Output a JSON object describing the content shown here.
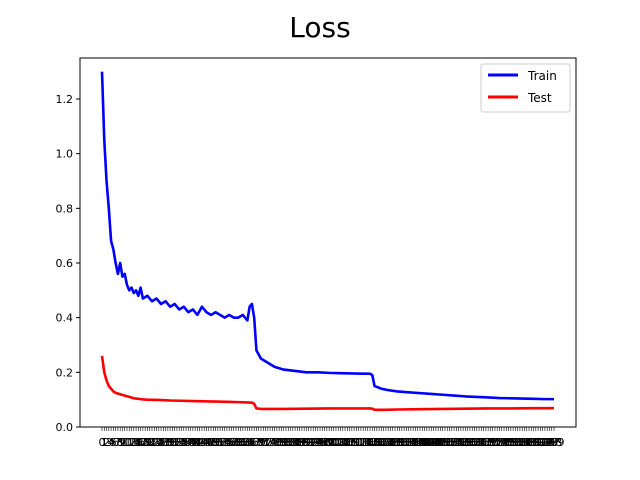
{
  "chart_data": {
    "type": "line",
    "title": "Loss",
    "xlabel": "",
    "ylabel": "",
    "xlim": [
      0,
      200
    ],
    "ylim": [
      0,
      1.35
    ],
    "yticks": [
      0.0,
      0.2,
      0.4,
      0.6,
      0.8,
      1.0,
      1.2
    ],
    "ytick_labels": [
      "0.0",
      "0.2",
      "0.4",
      "0.6",
      "0.8",
      "1.0",
      "1.2"
    ],
    "xtick_note": "densely overlapping labels at every epoch",
    "grid": false,
    "legend_position": "top-right",
    "series": [
      {
        "name": "Train",
        "color": "#0000ff",
        "points": [
          [
            0,
            1.3
          ],
          [
            1,
            1.05
          ],
          [
            2,
            0.9
          ],
          [
            3,
            0.8
          ],
          [
            4,
            0.68
          ],
          [
            5,
            0.65
          ],
          [
            6,
            0.6
          ],
          [
            7,
            0.56
          ],
          [
            8,
            0.6
          ],
          [
            9,
            0.55
          ],
          [
            10,
            0.56
          ],
          [
            11,
            0.52
          ],
          [
            12,
            0.5
          ],
          [
            13,
            0.51
          ],
          [
            14,
            0.49
          ],
          [
            15,
            0.5
          ],
          [
            16,
            0.48
          ],
          [
            17,
            0.51
          ],
          [
            18,
            0.47
          ],
          [
            20,
            0.48
          ],
          [
            22,
            0.46
          ],
          [
            24,
            0.47
          ],
          [
            26,
            0.45
          ],
          [
            28,
            0.46
          ],
          [
            30,
            0.44
          ],
          [
            32,
            0.45
          ],
          [
            34,
            0.43
          ],
          [
            36,
            0.44
          ],
          [
            38,
            0.42
          ],
          [
            40,
            0.43
          ],
          [
            42,
            0.41
          ],
          [
            44,
            0.44
          ],
          [
            46,
            0.42
          ],
          [
            48,
            0.41
          ],
          [
            50,
            0.42
          ],
          [
            52,
            0.41
          ],
          [
            54,
            0.4
          ],
          [
            56,
            0.41
          ],
          [
            58,
            0.4
          ],
          [
            60,
            0.4
          ],
          [
            62,
            0.41
          ],
          [
            64,
            0.39
          ],
          [
            65,
            0.44
          ],
          [
            66,
            0.45
          ],
          [
            67,
            0.4
          ],
          [
            68,
            0.28
          ],
          [
            70,
            0.25
          ],
          [
            72,
            0.24
          ],
          [
            74,
            0.23
          ],
          [
            76,
            0.22
          ],
          [
            78,
            0.215
          ],
          [
            80,
            0.21
          ],
          [
            85,
            0.205
          ],
          [
            90,
            0.2
          ],
          [
            95,
            0.2
          ],
          [
            100,
            0.198
          ],
          [
            105,
            0.197
          ],
          [
            110,
            0.196
          ],
          [
            115,
            0.195
          ],
          [
            118,
            0.195
          ],
          [
            119,
            0.19
          ],
          [
            120,
            0.15
          ],
          [
            123,
            0.14
          ],
          [
            126,
            0.135
          ],
          [
            130,
            0.13
          ],
          [
            135,
            0.127
          ],
          [
            140,
            0.124
          ],
          [
            145,
            0.121
          ],
          [
            150,
            0.118
          ],
          [
            155,
            0.115
          ],
          [
            160,
            0.112
          ],
          [
            165,
            0.11
          ],
          [
            170,
            0.108
          ],
          [
            175,
            0.106
          ],
          [
            180,
            0.105
          ],
          [
            185,
            0.104
          ],
          [
            190,
            0.103
          ],
          [
            195,
            0.102
          ],
          [
            199,
            0.102
          ]
        ]
      },
      {
        "name": "Test",
        "color": "#ff0000",
        "points": [
          [
            0,
            0.26
          ],
          [
            1,
            0.2
          ],
          [
            2,
            0.17
          ],
          [
            3,
            0.15
          ],
          [
            4,
            0.14
          ],
          [
            5,
            0.13
          ],
          [
            6,
            0.125
          ],
          [
            8,
            0.12
          ],
          [
            10,
            0.115
          ],
          [
            12,
            0.11
          ],
          [
            14,
            0.105
          ],
          [
            16,
            0.103
          ],
          [
            18,
            0.101
          ],
          [
            20,
            0.1
          ],
          [
            25,
            0.099
          ],
          [
            30,
            0.097
          ],
          [
            35,
            0.096
          ],
          [
            40,
            0.095
          ],
          [
            45,
            0.094
          ],
          [
            50,
            0.093
          ],
          [
            55,
            0.092
          ],
          [
            60,
            0.091
          ],
          [
            64,
            0.09
          ],
          [
            66,
            0.089
          ],
          [
            67,
            0.085
          ],
          [
            68,
            0.068
          ],
          [
            70,
            0.066
          ],
          [
            75,
            0.066
          ],
          [
            80,
            0.066
          ],
          [
            90,
            0.067
          ],
          [
            100,
            0.068
          ],
          [
            110,
            0.068
          ],
          [
            118,
            0.068
          ],
          [
            119,
            0.067
          ],
          [
            120,
            0.063
          ],
          [
            125,
            0.063
          ],
          [
            130,
            0.064
          ],
          [
            140,
            0.065
          ],
          [
            150,
            0.066
          ],
          [
            160,
            0.067
          ],
          [
            170,
            0.068
          ],
          [
            180,
            0.068
          ],
          [
            190,
            0.069
          ],
          [
            199,
            0.069
          ]
        ]
      }
    ]
  }
}
